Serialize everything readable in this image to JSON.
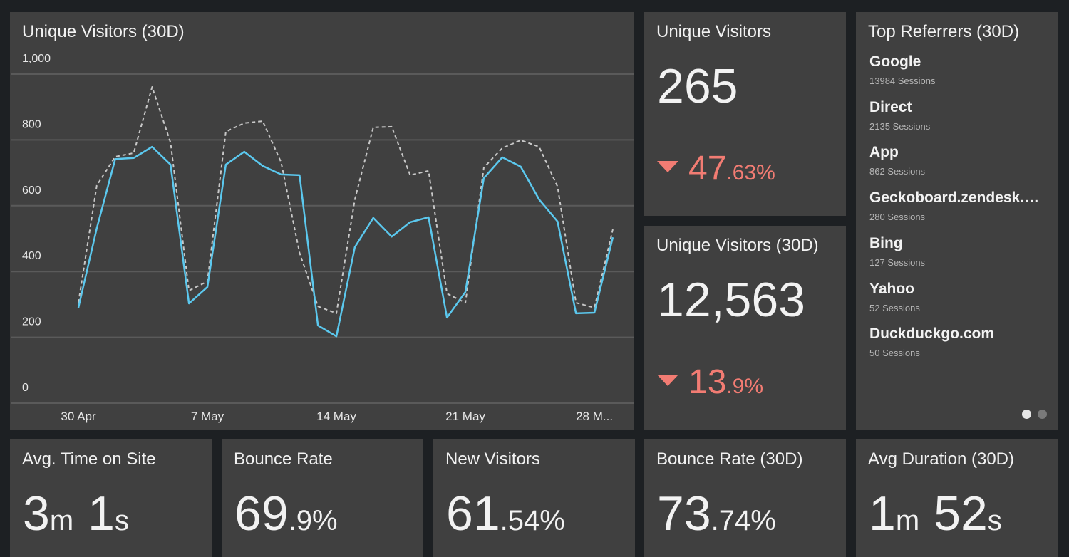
{
  "chart_data": {
    "type": "line",
    "title": "Unique Visitors (30D)",
    "categories": [
      "30 Apr",
      null,
      null,
      null,
      null,
      null,
      null,
      "7 May",
      null,
      null,
      null,
      null,
      null,
      null,
      "14 May",
      null,
      null,
      null,
      null,
      null,
      null,
      "21 May",
      null,
      null,
      null,
      null,
      null,
      null,
      "28 M...",
      null
    ],
    "series": [
      {
        "color": "#5bc8ee",
        "dashed": false,
        "values": [
          290,
          532,
          742,
          745,
          779,
          725,
          303,
          353,
          725,
          764,
          721,
          695,
          693,
          236,
          203,
          474,
          563,
          506,
          550,
          565,
          260,
          338,
          684,
          747,
          719,
          619,
          552,
          273,
          275,
          504
        ]
      },
      {
        "color": "#c8c8c8",
        "dashed": true,
        "values": [
          305,
          662,
          749,
          760,
          961,
          792,
          342,
          370,
          825,
          851,
          857,
          732,
          457,
          294,
          273,
          619,
          838,
          840,
          693,
          706,
          333,
          305,
          716,
          775,
          799,
          779,
          658,
          305,
          290,
          528
        ]
      }
    ],
    "ylim": [
      0,
      1000
    ],
    "yticks": [
      0,
      200,
      400,
      600,
      800,
      {
        "value": 1000,
        "label": "1,000"
      }
    ],
    "grid": true
  },
  "widgets": [
    {
      "title": "Unique Visitors",
      "value_parts": [
        "265"
      ],
      "change_parts": [
        "47",
        ".63%"
      ]
    },
    {
      "title": "Unique Visitors (30D)",
      "value_parts": [
        "12,563"
      ],
      "change_parts": [
        "13",
        ".9%"
      ]
    },
    {
      "title": "Avg. Time on Site",
      "value_parts": [
        "3",
        "m",
        "1",
        "s"
      ]
    },
    {
      "title": "Bounce Rate",
      "value_parts": [
        "69",
        ".9%"
      ]
    },
    {
      "title": "New Visitors",
      "value_parts": [
        "61",
        ".54%"
      ]
    },
    {
      "title": "Bounce Rate (30D)",
      "value_parts": [
        "73",
        ".74%"
      ]
    },
    {
      "title": "Avg Duration (30D)",
      "value_parts": [
        "1",
        "m",
        "52",
        "s"
      ]
    }
  ],
  "referrers": {
    "title": "Top Referrers (30D)",
    "items": [
      {
        "name": "Google",
        "sessions": "13984 Sessions"
      },
      {
        "name": "Direct",
        "sessions": "2135 Sessions"
      },
      {
        "name": "App",
        "sessions": "862 Sessions"
      },
      {
        "name": "Geckoboard.zendesk.…",
        "sessions": "280 Sessions"
      },
      {
        "name": "Bing",
        "sessions": "127 Sessions"
      },
      {
        "name": "Yahoo",
        "sessions": "52 Sessions"
      },
      {
        "name": "Duckduckgo.com",
        "sessions": "50 Sessions"
      }
    ]
  }
}
